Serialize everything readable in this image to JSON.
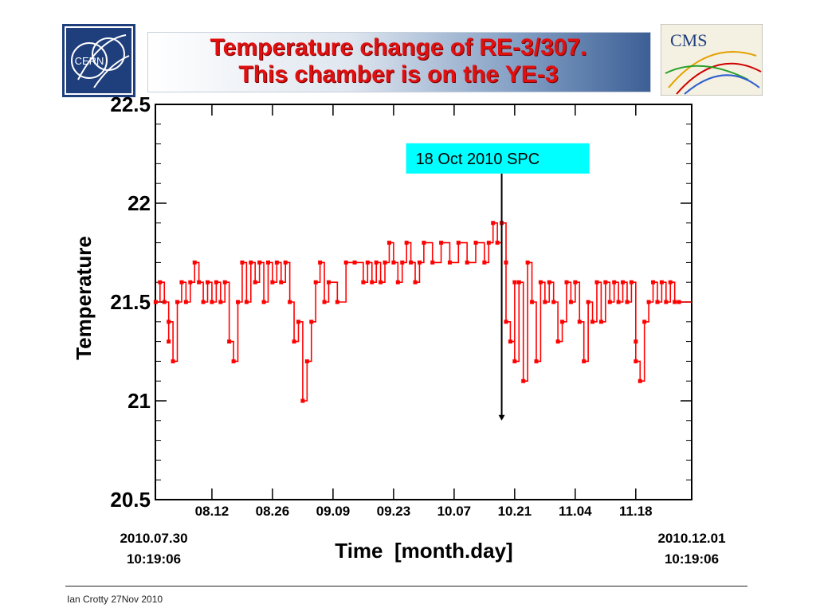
{
  "header": {
    "title_line1": "Temperature  change of RE-3/307.",
    "title_line2": "This chamber is on the YE-3",
    "logos": {
      "left": "CERN",
      "right": "CMS"
    }
  },
  "footer": {
    "text": "Ian Crotty  27Nov  2010"
  },
  "colors": {
    "series": "#ff0000",
    "annotation_bg": "#00ffff",
    "title": "#e01010"
  },
  "chart_data": {
    "type": "line",
    "title": "",
    "xlabel": "Time  [month.day]",
    "ylabel": "Temperature",
    "ylim": [
      20.5,
      22.5
    ],
    "yticks": [
      "20.5",
      "21",
      "21.5",
      "22",
      "22.5"
    ],
    "xticks": [
      "08.12",
      "08.26",
      "09.09",
      "09.23",
      "10.07",
      "10.21",
      "11.04",
      "11.18"
    ],
    "x_start": {
      "date": "2010.07.30",
      "time": "10:19:06"
    },
    "x_end": {
      "date": "2010.12.01",
      "time": "10:19:06"
    },
    "grid": false,
    "legend": "none",
    "annotation": {
      "label": "18 Oct 2010 SPC",
      "x": "2010-10-18",
      "y_from": 22.15,
      "y_to": 20.9
    },
    "series": [
      {
        "style": "step with square markers",
        "points": [
          [
            "2010-07-30",
            21.5
          ],
          [
            "2010-07-31",
            21.6
          ],
          [
            "2010-08-01",
            21.5
          ],
          [
            "2010-08-02",
            21.3
          ],
          [
            "2010-08-02",
            21.4
          ],
          [
            "2010-08-03",
            21.2
          ],
          [
            "2010-08-04",
            21.5
          ],
          [
            "2010-08-05",
            21.6
          ],
          [
            "2010-08-06",
            21.5
          ],
          [
            "2010-08-07",
            21.6
          ],
          [
            "2010-08-08",
            21.7
          ],
          [
            "2010-08-09",
            21.6
          ],
          [
            "2010-08-10",
            21.5
          ],
          [
            "2010-08-11",
            21.6
          ],
          [
            "2010-08-12",
            21.5
          ],
          [
            "2010-08-13",
            21.6
          ],
          [
            "2010-08-14",
            21.5
          ],
          [
            "2010-08-15",
            21.6
          ],
          [
            "2010-08-16",
            21.3
          ],
          [
            "2010-08-17",
            21.2
          ],
          [
            "2010-08-18",
            21.5
          ],
          [
            "2010-08-19",
            21.7
          ],
          [
            "2010-08-20",
            21.5
          ],
          [
            "2010-08-21",
            21.7
          ],
          [
            "2010-08-22",
            21.6
          ],
          [
            "2010-08-23",
            21.7
          ],
          [
            "2010-08-24",
            21.5
          ],
          [
            "2010-08-25",
            21.7
          ],
          [
            "2010-08-26",
            21.6
          ],
          [
            "2010-08-27",
            21.7
          ],
          [
            "2010-08-28",
            21.6
          ],
          [
            "2010-08-29",
            21.7
          ],
          [
            "2010-08-30",
            21.5
          ],
          [
            "2010-08-31",
            21.3
          ],
          [
            "2010-09-01",
            21.4
          ],
          [
            "2010-09-02",
            21.0
          ],
          [
            "2010-09-03",
            21.2
          ],
          [
            "2010-09-04",
            21.4
          ],
          [
            "2010-09-05",
            21.6
          ],
          [
            "2010-09-06",
            21.7
          ],
          [
            "2010-09-07",
            21.5
          ],
          [
            "2010-09-08",
            21.6
          ],
          [
            "2010-09-10",
            21.5
          ],
          [
            "2010-09-12",
            21.7
          ],
          [
            "2010-09-14",
            21.7
          ],
          [
            "2010-09-16",
            21.6
          ],
          [
            "2010-09-17",
            21.7
          ],
          [
            "2010-09-18",
            21.6
          ],
          [
            "2010-09-19",
            21.7
          ],
          [
            "2010-09-20",
            21.6
          ],
          [
            "2010-09-21",
            21.7
          ],
          [
            "2010-09-22",
            21.8
          ],
          [
            "2010-09-23",
            21.7
          ],
          [
            "2010-09-24",
            21.6
          ],
          [
            "2010-09-25",
            21.7
          ],
          [
            "2010-09-26",
            21.8
          ],
          [
            "2010-09-27",
            21.7
          ],
          [
            "2010-09-28",
            21.6
          ],
          [
            "2010-09-29",
            21.7
          ],
          [
            "2010-09-30",
            21.8
          ],
          [
            "2010-10-02",
            21.7
          ],
          [
            "2010-10-04",
            21.8
          ],
          [
            "2010-10-06",
            21.7
          ],
          [
            "2010-10-08",
            21.8
          ],
          [
            "2010-10-10",
            21.7
          ],
          [
            "2010-10-12",
            21.8
          ],
          [
            "2010-10-14",
            21.7
          ],
          [
            "2010-10-15",
            21.8
          ],
          [
            "2010-10-16",
            21.9
          ],
          [
            "2010-10-17",
            21.8
          ],
          [
            "2010-10-18",
            21.9
          ],
          [
            "2010-10-19",
            21.7
          ],
          [
            "2010-10-19",
            21.4
          ],
          [
            "2010-10-20",
            21.3
          ],
          [
            "2010-10-21",
            21.6
          ],
          [
            "2010-10-21",
            21.2
          ],
          [
            "2010-10-22",
            21.6
          ],
          [
            "2010-10-23",
            21.1
          ],
          [
            "2010-10-24",
            21.7
          ],
          [
            "2010-10-25",
            21.5
          ],
          [
            "2010-10-26",
            21.2
          ],
          [
            "2010-10-27",
            21.6
          ],
          [
            "2010-10-28",
            21.5
          ],
          [
            "2010-10-29",
            21.6
          ],
          [
            "2010-10-30",
            21.5
          ],
          [
            "2010-10-31",
            21.3
          ],
          [
            "2010-11-01",
            21.4
          ],
          [
            "2010-11-02",
            21.6
          ],
          [
            "2010-11-03",
            21.5
          ],
          [
            "2010-11-04",
            21.6
          ],
          [
            "2010-11-05",
            21.4
          ],
          [
            "2010-11-06",
            21.2
          ],
          [
            "2010-11-07",
            21.5
          ],
          [
            "2010-11-08",
            21.4
          ],
          [
            "2010-11-09",
            21.6
          ],
          [
            "2010-11-10",
            21.4
          ],
          [
            "2010-11-11",
            21.6
          ],
          [
            "2010-11-12",
            21.5
          ],
          [
            "2010-11-13",
            21.6
          ],
          [
            "2010-11-14",
            21.5
          ],
          [
            "2010-11-15",
            21.6
          ],
          [
            "2010-11-16",
            21.5
          ],
          [
            "2010-11-17",
            21.6
          ],
          [
            "2010-11-18",
            21.3
          ],
          [
            "2010-11-18",
            21.2
          ],
          [
            "2010-11-19",
            21.1
          ],
          [
            "2010-11-20",
            21.4
          ],
          [
            "2010-11-21",
            21.5
          ],
          [
            "2010-11-22",
            21.6
          ],
          [
            "2010-11-23",
            21.5
          ],
          [
            "2010-11-24",
            21.6
          ],
          [
            "2010-11-25",
            21.5
          ],
          [
            "2010-11-26",
            21.6
          ],
          [
            "2010-11-27",
            21.5
          ],
          [
            "2010-11-28",
            21.5
          ]
        ]
      }
    ]
  }
}
